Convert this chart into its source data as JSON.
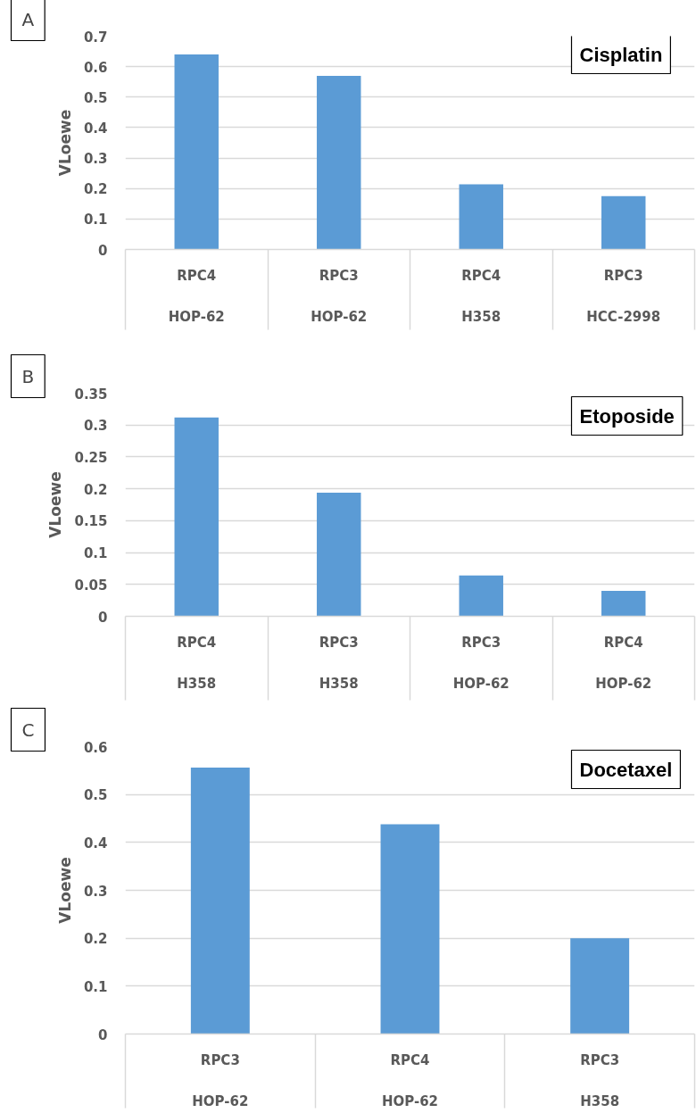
{
  "chart_data": [
    {
      "type": "bar",
      "title": "Cisplatin",
      "ylabel": "VLoewe",
      "annotations": [
        "A"
      ],
      "categories": [
        "RPC4\nHOP-62",
        "RPC3\nHOP-62",
        "RPC4\nH358",
        "RPC3\nHCC-2998"
      ],
      "values": [
        0.64,
        0.57,
        0.214,
        0.175
      ],
      "color": "#5b9bd5",
      "ylim": [
        0,
        0.7
      ],
      "yticks": [
        0,
        0.1,
        0.2,
        0.3,
        0.4,
        0.5,
        0.6,
        0.7
      ],
      "grid": "y"
    },
    {
      "type": "bar",
      "title": "Etoposide",
      "ylabel": "VLoewe",
      "annotations": [
        "B"
      ],
      "categories": [
        "RPC4\nH358",
        "RPC3\nH358",
        "RPC3\nHOP-62",
        "RPC4\nHOP-62"
      ],
      "values": [
        0.312,
        0.194,
        0.064,
        0.04
      ],
      "color": "#5b9bd5",
      "ylim": [
        0,
        0.35
      ],
      "yticks": [
        0,
        0.05,
        0.1,
        0.15,
        0.2,
        0.25,
        0.3,
        0.35
      ],
      "grid": "y"
    },
    {
      "type": "bar",
      "title": "Docetaxel",
      "ylabel": "VLoewe",
      "annotations": [
        "C"
      ],
      "categories": [
        "RPC3\nHOP-62",
        "RPC4\nHOP-62",
        "RPC3\nH358"
      ],
      "values": [
        0.556,
        0.438,
        0.2
      ],
      "color": "#5b9bd5",
      "ylim": [
        0,
        0.6
      ],
      "yticks": [
        0,
        0.1,
        0.2,
        0.3,
        0.4,
        0.5,
        0.6
      ],
      "grid": "y"
    }
  ]
}
